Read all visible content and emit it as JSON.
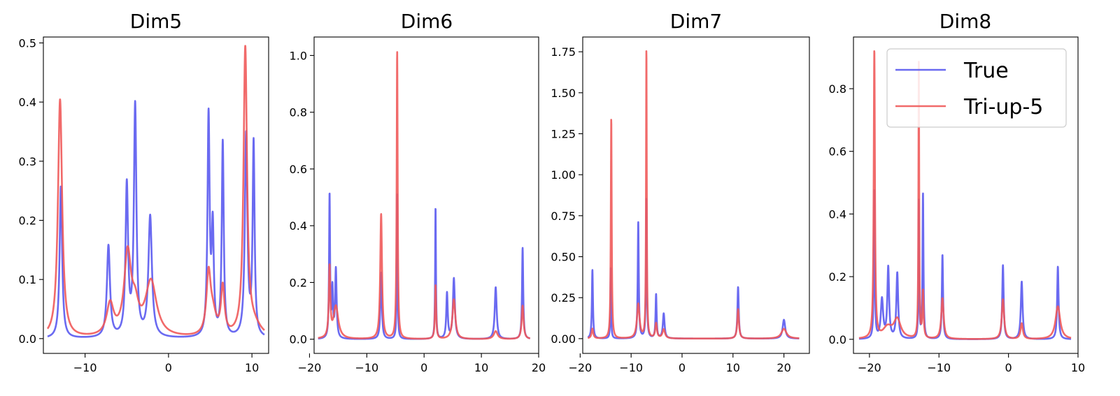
{
  "chart_data": [
    {
      "type": "line",
      "title": "Dim5",
      "xlim": [
        -15,
        12
      ],
      "ylim": [
        -0.025,
        0.51
      ],
      "xticks": [
        -10,
        0,
        10
      ],
      "xtick_labels": [
        "−10",
        "0",
        "10"
      ],
      "yticks": [
        0.0,
        0.1,
        0.2,
        0.3,
        0.4,
        0.5
      ],
      "ytick_labels": [
        "0.0",
        "0.1",
        "0.2",
        "0.3",
        "0.4",
        "0.5"
      ],
      "x_range": [
        -14.5,
        11.5
      ],
      "series": [
        {
          "name": "True",
          "color": "#5a5af0",
          "peaks": [
            [
              -12.9,
              0.257,
              0.18
            ],
            [
              -7.2,
              0.155,
              0.22
            ],
            [
              -5.0,
              0.254,
              0.18
            ],
            [
              -4.0,
              0.389,
              0.18
            ],
            [
              -2.2,
              0.204,
              0.25
            ],
            [
              4.8,
              0.371,
              0.15
            ],
            [
              5.3,
              0.178,
              0.15
            ],
            [
              6.5,
              0.329,
              0.14
            ],
            [
              9.3,
              0.342,
              0.18
            ],
            [
              10.2,
              0.325,
              0.14
            ]
          ]
        },
        {
          "name": "Tri-up-5",
          "color": "#f05a5a",
          "peaks": [
            [
              -13.0,
              0.403,
              0.3
            ],
            [
              -7.0,
              0.053,
              0.5
            ],
            [
              -4.9,
              0.136,
              0.5
            ],
            [
              -4.0,
              0.04,
              0.5
            ],
            [
              -2.1,
              0.093,
              0.8
            ],
            [
              4.8,
              0.098,
              0.3
            ],
            [
              5.3,
              0.035,
              0.5
            ],
            [
              6.5,
              0.08,
              0.25
            ],
            [
              9.2,
              0.483,
              0.25
            ],
            [
              10.2,
              0.02,
              1.0
            ]
          ]
        }
      ]
    },
    {
      "type": "line",
      "title": "Dim6",
      "xlim": [
        -19.2,
        20.0
      ],
      "ylim": [
        -0.05,
        1.065
      ],
      "xticks": [
        -20,
        -10,
        0,
        10,
        20
      ],
      "xtick_labels": [
        "−20",
        "−10",
        "0",
        "10",
        "20"
      ],
      "yticks": [
        0.0,
        0.2,
        0.4,
        0.6,
        0.8,
        1.0
      ],
      "ytick_labels": [
        "0.0",
        "0.2",
        "0.4",
        "0.6",
        "0.8",
        "1.0"
      ],
      "x_range": [
        -18.5,
        18.5
      ],
      "series": [
        {
          "name": "True",
          "color": "#5a5af0",
          "peaks": [
            [
              -16.5,
              0.506,
              0.1
            ],
            [
              -16.0,
              0.168,
              0.12
            ],
            [
              -15.4,
              0.244,
              0.15
            ],
            [
              -7.5,
              0.235,
              0.15
            ],
            [
              -4.7,
              0.512,
              0.08
            ],
            [
              2.0,
              0.466,
              0.08
            ],
            [
              4.0,
              0.16,
              0.15
            ],
            [
              5.2,
              0.213,
              0.2
            ],
            [
              12.5,
              0.183,
              0.2
            ],
            [
              17.2,
              0.322,
              0.12
            ]
          ]
        },
        {
          "name": "Tri-up-5",
          "color": "#f05a5a",
          "peaks": [
            [
              -16.5,
              0.245,
              0.15
            ],
            [
              -15.4,
              0.115,
              0.5
            ],
            [
              -7.5,
              0.44,
              0.18
            ],
            [
              -4.7,
              1.013,
              0.1
            ],
            [
              2.0,
              0.19,
              0.12
            ],
            [
              5.2,
              0.14,
              0.3
            ],
            [
              12.5,
              0.028,
              0.4
            ],
            [
              17.2,
              0.118,
              0.2
            ]
          ]
        }
      ]
    },
    {
      "type": "line",
      "title": "Dim7",
      "xlim": [
        -19.5,
        25.0
      ],
      "ylim": [
        -0.09,
        1.84
      ],
      "xticks": [
        -20,
        -10,
        0,
        10,
        20
      ],
      "xtick_labels": [
        "−20",
        "−10",
        "0",
        "10",
        "20"
      ],
      "yticks": [
        0.0,
        0.25,
        0.5,
        0.75,
        1.0,
        1.25,
        1.5,
        1.75
      ],
      "ytick_labels": [
        "0.00",
        "0.25",
        "0.50",
        "0.75",
        "1.00",
        "1.25",
        "1.50",
        "1.75"
      ],
      "x_range": [
        -18.5,
        23.0
      ],
      "series": [
        {
          "name": "True",
          "color": "#5a5af0",
          "peaks": [
            [
              -17.6,
              0.42,
              0.12
            ],
            [
              -14.0,
              0.44,
              0.08
            ],
            [
              -8.6,
              0.71,
              0.12
            ],
            [
              -7.0,
              0.855,
              0.1
            ],
            [
              -5.1,
              0.268,
              0.12
            ],
            [
              -3.6,
              0.152,
              0.2
            ],
            [
              11.0,
              0.315,
              0.15
            ],
            [
              20.0,
              0.115,
              0.3
            ]
          ]
        },
        {
          "name": "Tri-up-5",
          "color": "#f05a5a",
          "peaks": [
            [
              -17.6,
              0.06,
              0.2
            ],
            [
              -13.9,
              1.345,
              0.1
            ],
            [
              -8.6,
              0.21,
              0.3
            ],
            [
              -7.0,
              1.77,
              0.08
            ],
            [
              -5.1,
              0.09,
              0.2
            ],
            [
              -3.6,
              0.055,
              0.3
            ],
            [
              11.0,
              0.18,
              0.2
            ],
            [
              20.0,
              0.06,
              0.6
            ]
          ]
        }
      ]
    },
    {
      "type": "line",
      "title": "Dim8",
      "xlim": [
        -22.3,
        10.0
      ],
      "ylim": [
        -0.045,
        0.965
      ],
      "xticks": [
        -20,
        -10,
        0,
        10
      ],
      "xtick_labels": [
        "−20",
        "−10",
        "0",
        "10"
      ],
      "yticks": [
        0.0,
        0.2,
        0.4,
        0.6,
        0.8
      ],
      "ytick_labels": [
        "0.0",
        "0.2",
        "0.4",
        "0.6",
        "0.8"
      ],
      "x_range": [
        -21.5,
        9.0
      ],
      "legend": {
        "position": "upper right",
        "entries": [
          "True",
          "Tri-up-5"
        ]
      },
      "series": [
        {
          "name": "True",
          "color": "#5a5af0",
          "peaks": [
            [
              -19.3,
              0.475,
              0.08
            ],
            [
              -18.2,
              0.125,
              0.2
            ],
            [
              -17.3,
              0.226,
              0.15
            ],
            [
              -16.0,
              0.21,
              0.15
            ],
            [
              -12.9,
              0.438,
              0.06
            ],
            [
              -12.3,
              0.464,
              0.08
            ],
            [
              -9.5,
              0.27,
              0.1
            ],
            [
              -0.8,
              0.236,
              0.12
            ],
            [
              1.9,
              0.184,
              0.15
            ],
            [
              7.1,
              0.232,
              0.12
            ]
          ]
        },
        {
          "name": "Tri-up-5",
          "color": "#f05a5a",
          "peaks": [
            [
              -19.3,
              0.918,
              0.1
            ],
            [
              -17.4,
              0.035,
              0.8
            ],
            [
              -16.0,
              0.06,
              0.6
            ],
            [
              -12.9,
              0.88,
              0.06
            ],
            [
              -12.3,
              0.148,
              0.1
            ],
            [
              -9.5,
              0.13,
              0.2
            ],
            [
              -0.8,
              0.127,
              0.2
            ],
            [
              1.9,
              0.05,
              0.2
            ],
            [
              7.1,
              0.105,
              0.4
            ]
          ]
        }
      ]
    }
  ]
}
